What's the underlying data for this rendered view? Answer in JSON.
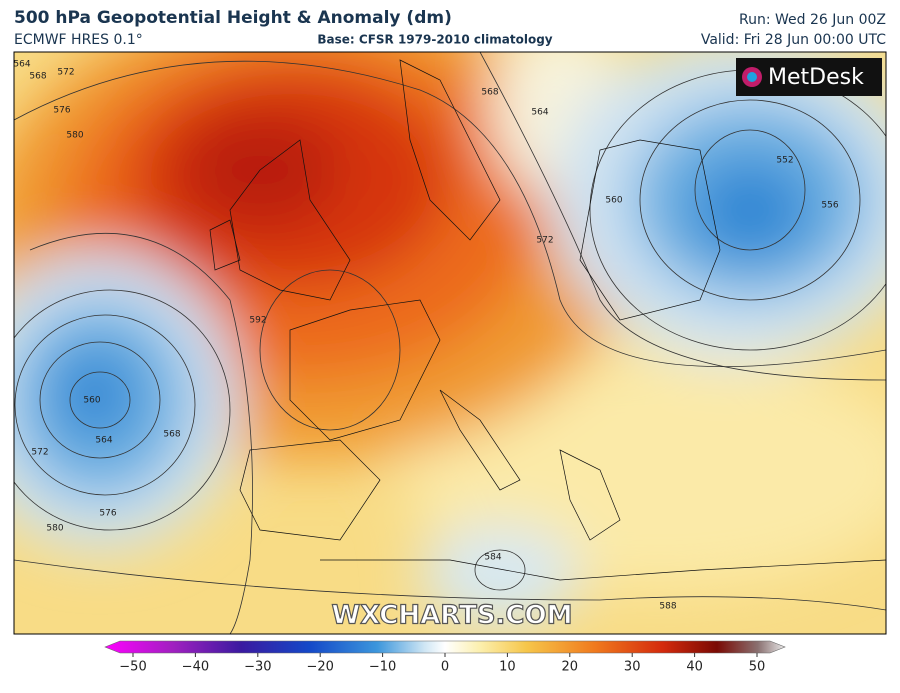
{
  "header": {
    "title": "500 hPa Geopotential Height & Anomaly (dm)",
    "model": "ECMWF HRES 0.1°",
    "base": "Base: CFSR 1979-2010 climatology",
    "run": "Run: Wed 26 Jun 00Z",
    "valid": "Valid: Fri 28 Jun 00:00 UTC"
  },
  "logo": "MetDesk",
  "watermark": "WXCHARTS.COM",
  "contour_labels": [
    "564",
    "568",
    "572",
    "576",
    "580",
    "592",
    "560",
    "564",
    "568",
    "572",
    "576",
    "580",
    "568",
    "564",
    "572",
    "560",
    "552",
    "556",
    "584",
    "588"
  ],
  "colorbar": {
    "ticks": [
      "−50",
      "−40",
      "−30",
      "−20",
      "−10",
      "0",
      "10",
      "20",
      "30",
      "40",
      "50"
    ]
  }
}
